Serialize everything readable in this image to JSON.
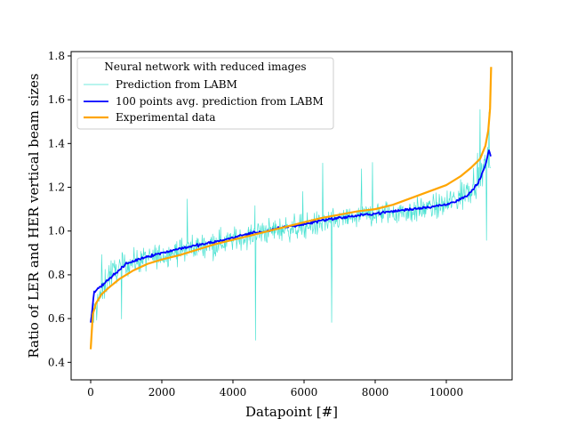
{
  "chart_data": {
    "type": "line",
    "title": "",
    "xlabel": "Datapoint [#]",
    "ylabel": "Ratio of LER and HER vertical beam sizes",
    "xlim": [
      -550,
      11850
    ],
    "ylim": [
      0.32,
      1.82
    ],
    "xticks": [
      0,
      2000,
      4000,
      6000,
      8000,
      10000
    ],
    "yticks": [
      0.4,
      0.6,
      0.8,
      1.0,
      1.2,
      1.4,
      1.6,
      1.8
    ],
    "xtick_labels": [
      "0",
      "2000",
      "4000",
      "6000",
      "8000",
      "10000"
    ],
    "ytick_labels": [
      "0.4",
      "0.6",
      "0.8",
      "1.0",
      "1.2",
      "1.4",
      "1.6",
      "1.8"
    ],
    "n_points": 11300,
    "legend": {
      "title": "Neural network with reduced images",
      "placement": "upper-left"
    },
    "series": [
      {
        "name": "Prediction from LABM",
        "color": "#40e0d0",
        "style": "thin-noisy",
        "x": [
          0,
          500,
          1000,
          1500,
          2000,
          3000,
          4000,
          5000,
          6000,
          7000,
          8000,
          9000,
          10000,
          10500,
          11000,
          11250
        ],
        "y": [
          0.58,
          0.8,
          0.85,
          0.87,
          0.89,
          0.93,
          0.96,
          1.0,
          1.02,
          1.05,
          1.08,
          1.09,
          1.12,
          1.17,
          1.27,
          1.34
        ]
      },
      {
        "name": "100 points avg. prediction from LABM",
        "color": "#0000ff",
        "style": "medium",
        "x": [
          0,
          100,
          300,
          500,
          800,
          1000,
          1500,
          2000,
          2500,
          3000,
          3500,
          4000,
          4500,
          5000,
          5500,
          6000,
          6500,
          7000,
          7500,
          8000,
          8500,
          9000,
          9500,
          10000,
          10300,
          10600,
          10900,
          11100,
          11200,
          11250
        ],
        "y": [
          0.58,
          0.72,
          0.75,
          0.78,
          0.82,
          0.85,
          0.88,
          0.9,
          0.92,
          0.935,
          0.95,
          0.97,
          0.99,
          1.0,
          1.02,
          1.03,
          1.05,
          1.06,
          1.07,
          1.08,
          1.09,
          1.1,
          1.11,
          1.12,
          1.14,
          1.16,
          1.22,
          1.3,
          1.37,
          1.34
        ]
      },
      {
        "name": "Experimental data",
        "color": "#ffa500",
        "style": "thick",
        "x": [
          0,
          60,
          150,
          300,
          500,
          800,
          1200,
          1600,
          2000,
          2500,
          3000,
          3500,
          4000,
          4500,
          5000,
          5500,
          6000,
          6500,
          7000,
          7500,
          8000,
          8500,
          9000,
          9500,
          10000,
          10400,
          10700,
          10950,
          11100,
          11180,
          11230,
          11260
        ],
        "y": [
          0.46,
          0.62,
          0.67,
          0.71,
          0.74,
          0.78,
          0.82,
          0.85,
          0.87,
          0.89,
          0.915,
          0.94,
          0.96,
          0.98,
          1.0,
          1.02,
          1.04,
          1.06,
          1.075,
          1.09,
          1.1,
          1.12,
          1.15,
          1.18,
          1.21,
          1.25,
          1.29,
          1.33,
          1.39,
          1.46,
          1.56,
          1.75
        ]
      }
    ]
  }
}
